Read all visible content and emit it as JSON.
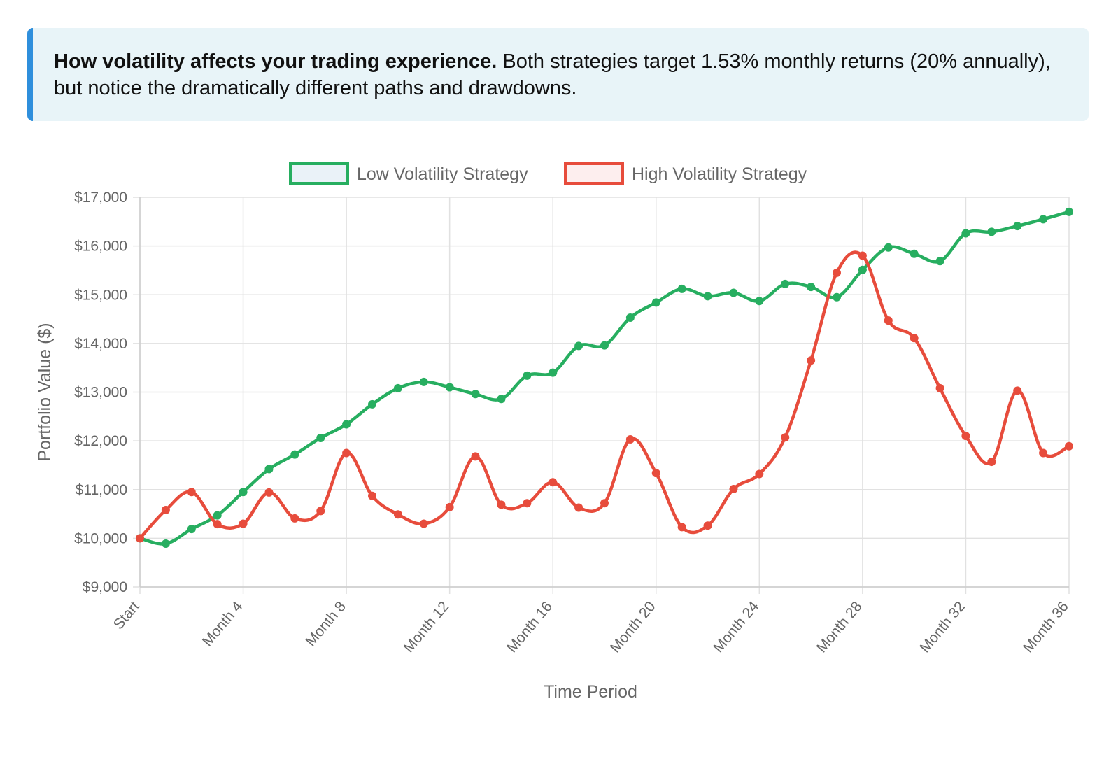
{
  "info": {
    "headline": "How volatility affects your trading experience.",
    "body": " Both strategies target 1.53% monthly returns (20% annually), but notice the dramatically different paths and drawdowns."
  },
  "chart_data": {
    "type": "line",
    "title": "",
    "xlabel": "Time Period",
    "ylabel": "Portfolio Value ($)",
    "ylim": [
      9000,
      17000
    ],
    "y_ticks": [
      9000,
      10000,
      11000,
      12000,
      13000,
      14000,
      15000,
      16000,
      17000
    ],
    "y_tick_labels": [
      "$9,000",
      "$10,000",
      "$11,000",
      "$12,000",
      "$13,000",
      "$14,000",
      "$15,000",
      "$16,000",
      "$17,000"
    ],
    "x_tick_labels": [
      "Start",
      "Month 4",
      "Month 8",
      "Month 12",
      "Month 16",
      "Month 20",
      "Month 24",
      "Month 28",
      "Month 32",
      "Month 36"
    ],
    "x_tick_indices": [
      0,
      4,
      8,
      12,
      16,
      20,
      24,
      28,
      32,
      36
    ],
    "grid": true,
    "legend_position": "top-center",
    "series": [
      {
        "name": "Low Volatility Strategy",
        "color": "#27ae60",
        "fill": "#eaf2f8",
        "values": [
          10000,
          9890,
          10190,
          10470,
          10950,
          11420,
          11720,
          12060,
          12340,
          12750,
          13080,
          13210,
          13100,
          12960,
          12860,
          13340,
          13400,
          13950,
          13960,
          14530,
          14840,
          15120,
          14970,
          15040,
          14870,
          15220,
          15160,
          14950,
          15510,
          15970,
          15840,
          15690,
          16260,
          16290,
          16410,
          16550,
          16700
        ]
      },
      {
        "name": "High Volatility Strategy",
        "color": "#e74c3c",
        "fill": "#fdeeee",
        "values": [
          10000,
          10580,
          10950,
          10290,
          10300,
          10940,
          10410,
          10560,
          11750,
          10870,
          10490,
          10300,
          10640,
          11680,
          10690,
          10720,
          11150,
          10630,
          10720,
          12030,
          11340,
          10230,
          10260,
          11010,
          11320,
          12070,
          13650,
          15450,
          15800,
          14470,
          14110,
          13080,
          12100,
          11570,
          13030,
          11750,
          11890
        ]
      }
    ]
  }
}
